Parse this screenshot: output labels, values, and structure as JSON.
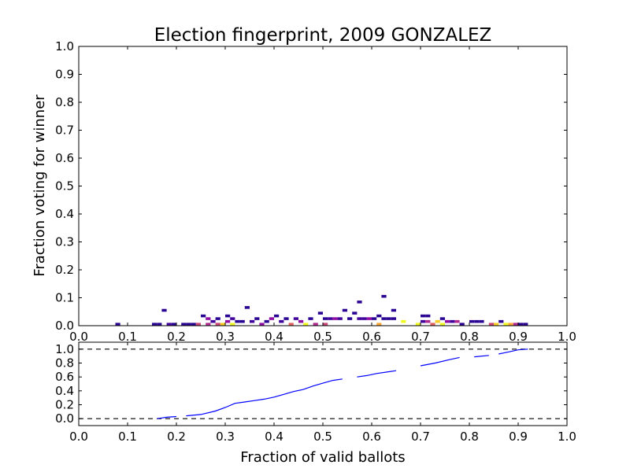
{
  "chart_data": [
    {
      "type": "heatmap",
      "title": "Election fingerprint, 2009 GONZALEZ",
      "xlabel": "",
      "ylabel": "Fraction voting for winner",
      "xlim": [
        0,
        1
      ],
      "ylim": [
        0,
        1
      ],
      "xticks": [
        "0.0",
        "0.1",
        "0.2",
        "0.3",
        "0.4",
        "0.5",
        "0.6",
        "0.7",
        "0.8",
        "0.9",
        "1.0"
      ],
      "yticks": [
        "0.0",
        "0.1",
        "0.2",
        "0.3",
        "0.4",
        "0.5",
        "0.6",
        "0.7",
        "0.8",
        "0.9",
        "1.0"
      ],
      "cells": [
        {
          "x": 0.08,
          "y": 0.0,
          "v": 1
        },
        {
          "x": 0.155,
          "y": 0.0,
          "v": 1
        },
        {
          "x": 0.165,
          "y": 0.0,
          "v": 1
        },
        {
          "x": 0.175,
          "y": 0.05,
          "v": 1
        },
        {
          "x": 0.185,
          "y": 0.0,
          "v": 2
        },
        {
          "x": 0.195,
          "y": 0.0,
          "v": 1
        },
        {
          "x": 0.215,
          "y": 0.0,
          "v": 1
        },
        {
          "x": 0.225,
          "y": 0.0,
          "v": 1
        },
        {
          "x": 0.235,
          "y": 0.0,
          "v": 1
        },
        {
          "x": 0.245,
          "y": 0.0,
          "v": 5
        },
        {
          "x": 0.255,
          "y": 0.03,
          "v": 1
        },
        {
          "x": 0.265,
          "y": 0.02,
          "v": 3
        },
        {
          "x": 0.265,
          "y": 0.0,
          "v": 4
        },
        {
          "x": 0.275,
          "y": 0.01,
          "v": 2
        },
        {
          "x": 0.285,
          "y": 0.02,
          "v": 1
        },
        {
          "x": 0.285,
          "y": 0.0,
          "v": 5
        },
        {
          "x": 0.295,
          "y": 0.0,
          "v": 8
        },
        {
          "x": 0.305,
          "y": 0.03,
          "v": 1
        },
        {
          "x": 0.305,
          "y": 0.01,
          "v": 3
        },
        {
          "x": 0.315,
          "y": 0.0,
          "v": 9
        },
        {
          "x": 0.315,
          "y": 0.02,
          "v": 2
        },
        {
          "x": 0.325,
          "y": 0.01,
          "v": 1
        },
        {
          "x": 0.335,
          "y": 0.01,
          "v": 1
        },
        {
          "x": 0.345,
          "y": 0.06,
          "v": 1
        },
        {
          "x": 0.355,
          "y": 0.01,
          "v": 2
        },
        {
          "x": 0.365,
          "y": 0.02,
          "v": 1
        },
        {
          "x": 0.375,
          "y": 0.0,
          "v": 3
        },
        {
          "x": 0.385,
          "y": 0.01,
          "v": 1
        },
        {
          "x": 0.395,
          "y": 0.02,
          "v": 3
        },
        {
          "x": 0.405,
          "y": 0.03,
          "v": 1
        },
        {
          "x": 0.415,
          "y": 0.01,
          "v": 2
        },
        {
          "x": 0.425,
          "y": 0.02,
          "v": 1
        },
        {
          "x": 0.435,
          "y": 0.0,
          "v": 6
        },
        {
          "x": 0.445,
          "y": 0.02,
          "v": 2
        },
        {
          "x": 0.455,
          "y": 0.01,
          "v": 3
        },
        {
          "x": 0.465,
          "y": 0.0,
          "v": 9
        },
        {
          "x": 0.475,
          "y": 0.02,
          "v": 1
        },
        {
          "x": 0.485,
          "y": 0.0,
          "v": 4
        },
        {
          "x": 0.495,
          "y": 0.04,
          "v": 1
        },
        {
          "x": 0.505,
          "y": 0.0,
          "v": 5
        },
        {
          "x": 0.505,
          "y": 0.02,
          "v": 1
        },
        {
          "x": 0.515,
          "y": 0.02,
          "v": 2
        },
        {
          "x": 0.525,
          "y": 0.02,
          "v": 3
        },
        {
          "x": 0.535,
          "y": 0.02,
          "v": 2
        },
        {
          "x": 0.545,
          "y": 0.05,
          "v": 1
        },
        {
          "x": 0.555,
          "y": 0.02,
          "v": 1
        },
        {
          "x": 0.565,
          "y": 0.04,
          "v": 1
        },
        {
          "x": 0.575,
          "y": 0.08,
          "v": 1
        },
        {
          "x": 0.575,
          "y": 0.02,
          "v": 2
        },
        {
          "x": 0.585,
          "y": 0.02,
          "v": 2
        },
        {
          "x": 0.595,
          "y": 0.02,
          "v": 3
        },
        {
          "x": 0.605,
          "y": 0.02,
          "v": 1
        },
        {
          "x": 0.615,
          "y": 0.0,
          "v": 7
        },
        {
          "x": 0.615,
          "y": 0.03,
          "v": 1
        },
        {
          "x": 0.625,
          "y": 0.1,
          "v": 1
        },
        {
          "x": 0.625,
          "y": 0.02,
          "v": 1
        },
        {
          "x": 0.635,
          "y": 0.02,
          "v": 1
        },
        {
          "x": 0.645,
          "y": 0.05,
          "v": 1
        },
        {
          "x": 0.645,
          "y": 0.02,
          "v": 1
        },
        {
          "x": 0.665,
          "y": 0.01,
          "v": 9
        },
        {
          "x": 0.695,
          "y": 0.0,
          "v": 9
        },
        {
          "x": 0.705,
          "y": 0.03,
          "v": 1
        },
        {
          "x": 0.705,
          "y": 0.01,
          "v": 2
        },
        {
          "x": 0.715,
          "y": 0.01,
          "v": 4
        },
        {
          "x": 0.715,
          "y": 0.03,
          "v": 1
        },
        {
          "x": 0.725,
          "y": 0.0,
          "v": 6
        },
        {
          "x": 0.735,
          "y": 0.01,
          "v": 8
        },
        {
          "x": 0.745,
          "y": 0.0,
          "v": 9
        },
        {
          "x": 0.745,
          "y": 0.02,
          "v": 1
        },
        {
          "x": 0.755,
          "y": 0.01,
          "v": 3
        },
        {
          "x": 0.765,
          "y": 0.01,
          "v": 2
        },
        {
          "x": 0.775,
          "y": 0.01,
          "v": 4
        },
        {
          "x": 0.785,
          "y": 0.0,
          "v": 1
        },
        {
          "x": 0.805,
          "y": 0.01,
          "v": 1
        },
        {
          "x": 0.815,
          "y": 0.01,
          "v": 1
        },
        {
          "x": 0.825,
          "y": 0.01,
          "v": 1
        },
        {
          "x": 0.845,
          "y": 0.0,
          "v": 5
        },
        {
          "x": 0.855,
          "y": 0.0,
          "v": 8
        },
        {
          "x": 0.865,
          "y": 0.01,
          "v": 1
        },
        {
          "x": 0.875,
          "y": 0.0,
          "v": 9
        },
        {
          "x": 0.885,
          "y": 0.0,
          "v": 7
        },
        {
          "x": 0.895,
          "y": 0.0,
          "v": 4
        },
        {
          "x": 0.905,
          "y": 0.0,
          "v": 1
        },
        {
          "x": 0.915,
          "y": 0.0,
          "v": 1
        }
      ]
    },
    {
      "type": "line",
      "title": "",
      "xlabel": "Fraction of valid ballots",
      "ylabel": "",
      "xlim": [
        0,
        1
      ],
      "ylim": [
        -0.1,
        1.1
      ],
      "xticks": [
        "0.0",
        "0.1",
        "0.2",
        "0.3",
        "0.4",
        "0.5",
        "0.6",
        "0.7",
        "0.8",
        "0.9",
        "1.0"
      ],
      "yticks": [
        "0.0",
        "0.2",
        "0.4",
        "0.6",
        "0.8",
        "1.0"
      ],
      "reference_lines": [
        0.0,
        1.0
      ],
      "series": [
        {
          "segments": [
            [
              [
                0.16,
                0.0
              ],
              [
                0.17,
                0.01
              ],
              [
                0.18,
                0.02
              ],
              [
                0.2,
                0.03
              ]
            ],
            [
              [
                0.22,
                0.04
              ],
              [
                0.25,
                0.06
              ],
              [
                0.28,
                0.11
              ],
              [
                0.3,
                0.16
              ],
              [
                0.32,
                0.22
              ],
              [
                0.34,
                0.24
              ],
              [
                0.36,
                0.26
              ],
              [
                0.38,
                0.28
              ],
              [
                0.4,
                0.31
              ],
              [
                0.42,
                0.35
              ],
              [
                0.44,
                0.39
              ],
              [
                0.46,
                0.42
              ],
              [
                0.48,
                0.47
              ],
              [
                0.5,
                0.51
              ],
              [
                0.52,
                0.55
              ],
              [
                0.54,
                0.57
              ]
            ],
            [
              [
                0.57,
                0.6
              ],
              [
                0.59,
                0.62
              ],
              [
                0.61,
                0.65
              ],
              [
                0.63,
                0.67
              ],
              [
                0.65,
                0.69
              ]
            ],
            [
              [
                0.7,
                0.76
              ],
              [
                0.73,
                0.8
              ],
              [
                0.76,
                0.85
              ],
              [
                0.78,
                0.88
              ]
            ],
            [
              [
                0.81,
                0.89
              ],
              [
                0.84,
                0.91
              ]
            ],
            [
              [
                0.86,
                0.93
              ],
              [
                0.88,
                0.96
              ],
              [
                0.9,
                0.99
              ],
              [
                0.92,
                1.0
              ]
            ]
          ]
        }
      ]
    }
  ],
  "colors": {
    "line": "#0000ff",
    "colormap": [
      "#0c0786",
      "#2a0593",
      "#40039c",
      "#6a00a7",
      "#8f0da3",
      "#b02a8f",
      "#cb4778",
      "#e16462",
      "#f2844b",
      "#fca636",
      "#fcce25",
      "#f0f921"
    ]
  }
}
